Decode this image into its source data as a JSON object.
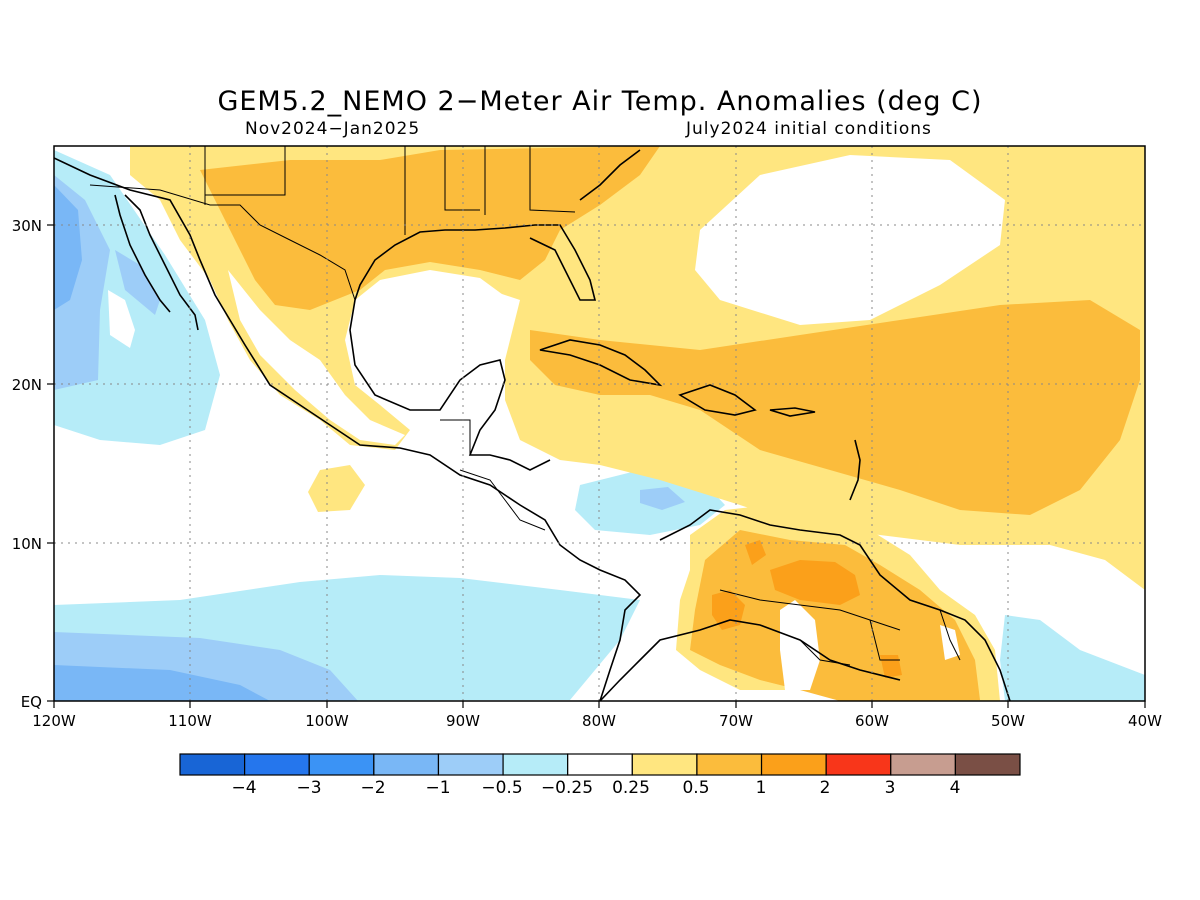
{
  "title": "GEM5.2_NEMO 2−Meter Air Temp. Anomalies (deg C)",
  "subtitle_left": "Nov2024−Jan2025",
  "subtitle_right": "July2024 initial conditions",
  "map": {
    "lon_range": [
      -120,
      -40
    ],
    "lat_range": [
      0,
      35
    ],
    "lon_ticks": [
      {
        "value": -120,
        "label": "120W"
      },
      {
        "value": -110,
        "label": "110W"
      },
      {
        "value": -100,
        "label": "100W"
      },
      {
        "value": -90,
        "label": "90W"
      },
      {
        "value": -80,
        "label": "80W"
      },
      {
        "value": -70,
        "label": "70W"
      },
      {
        "value": -60,
        "label": "60W"
      },
      {
        "value": -50,
        "label": "50W"
      },
      {
        "value": -40,
        "label": "40W"
      }
    ],
    "lat_ticks": [
      {
        "value": 0,
        "label": "EQ"
      },
      {
        "value": 10,
        "label": "10N"
      },
      {
        "value": 20,
        "label": "20N"
      },
      {
        "value": 30,
        "label": "30N"
      }
    ],
    "grid": true,
    "gridlines_lon": [
      -110,
      -100,
      -90,
      -80,
      -70,
      -60,
      -50
    ],
    "gridlines_lat": [
      10,
      20,
      30
    ]
  },
  "colorbar": {
    "colors": [
      "#1865d6",
      "#2576ed",
      "#3b93f5",
      "#79b7f6",
      "#9dcdf8",
      "#b6ecf8",
      "#ffffff",
      "#ffe680",
      "#fbbc3c",
      "#fba01a",
      "#f8361a",
      "#c79d90",
      "#7a4f45"
    ],
    "labels": [
      "−4",
      "−3",
      "−2",
      "−1",
      "−0.5",
      "−0.25",
      "0.25",
      "0.5",
      "1",
      "2",
      "3",
      "4"
    ]
  }
}
